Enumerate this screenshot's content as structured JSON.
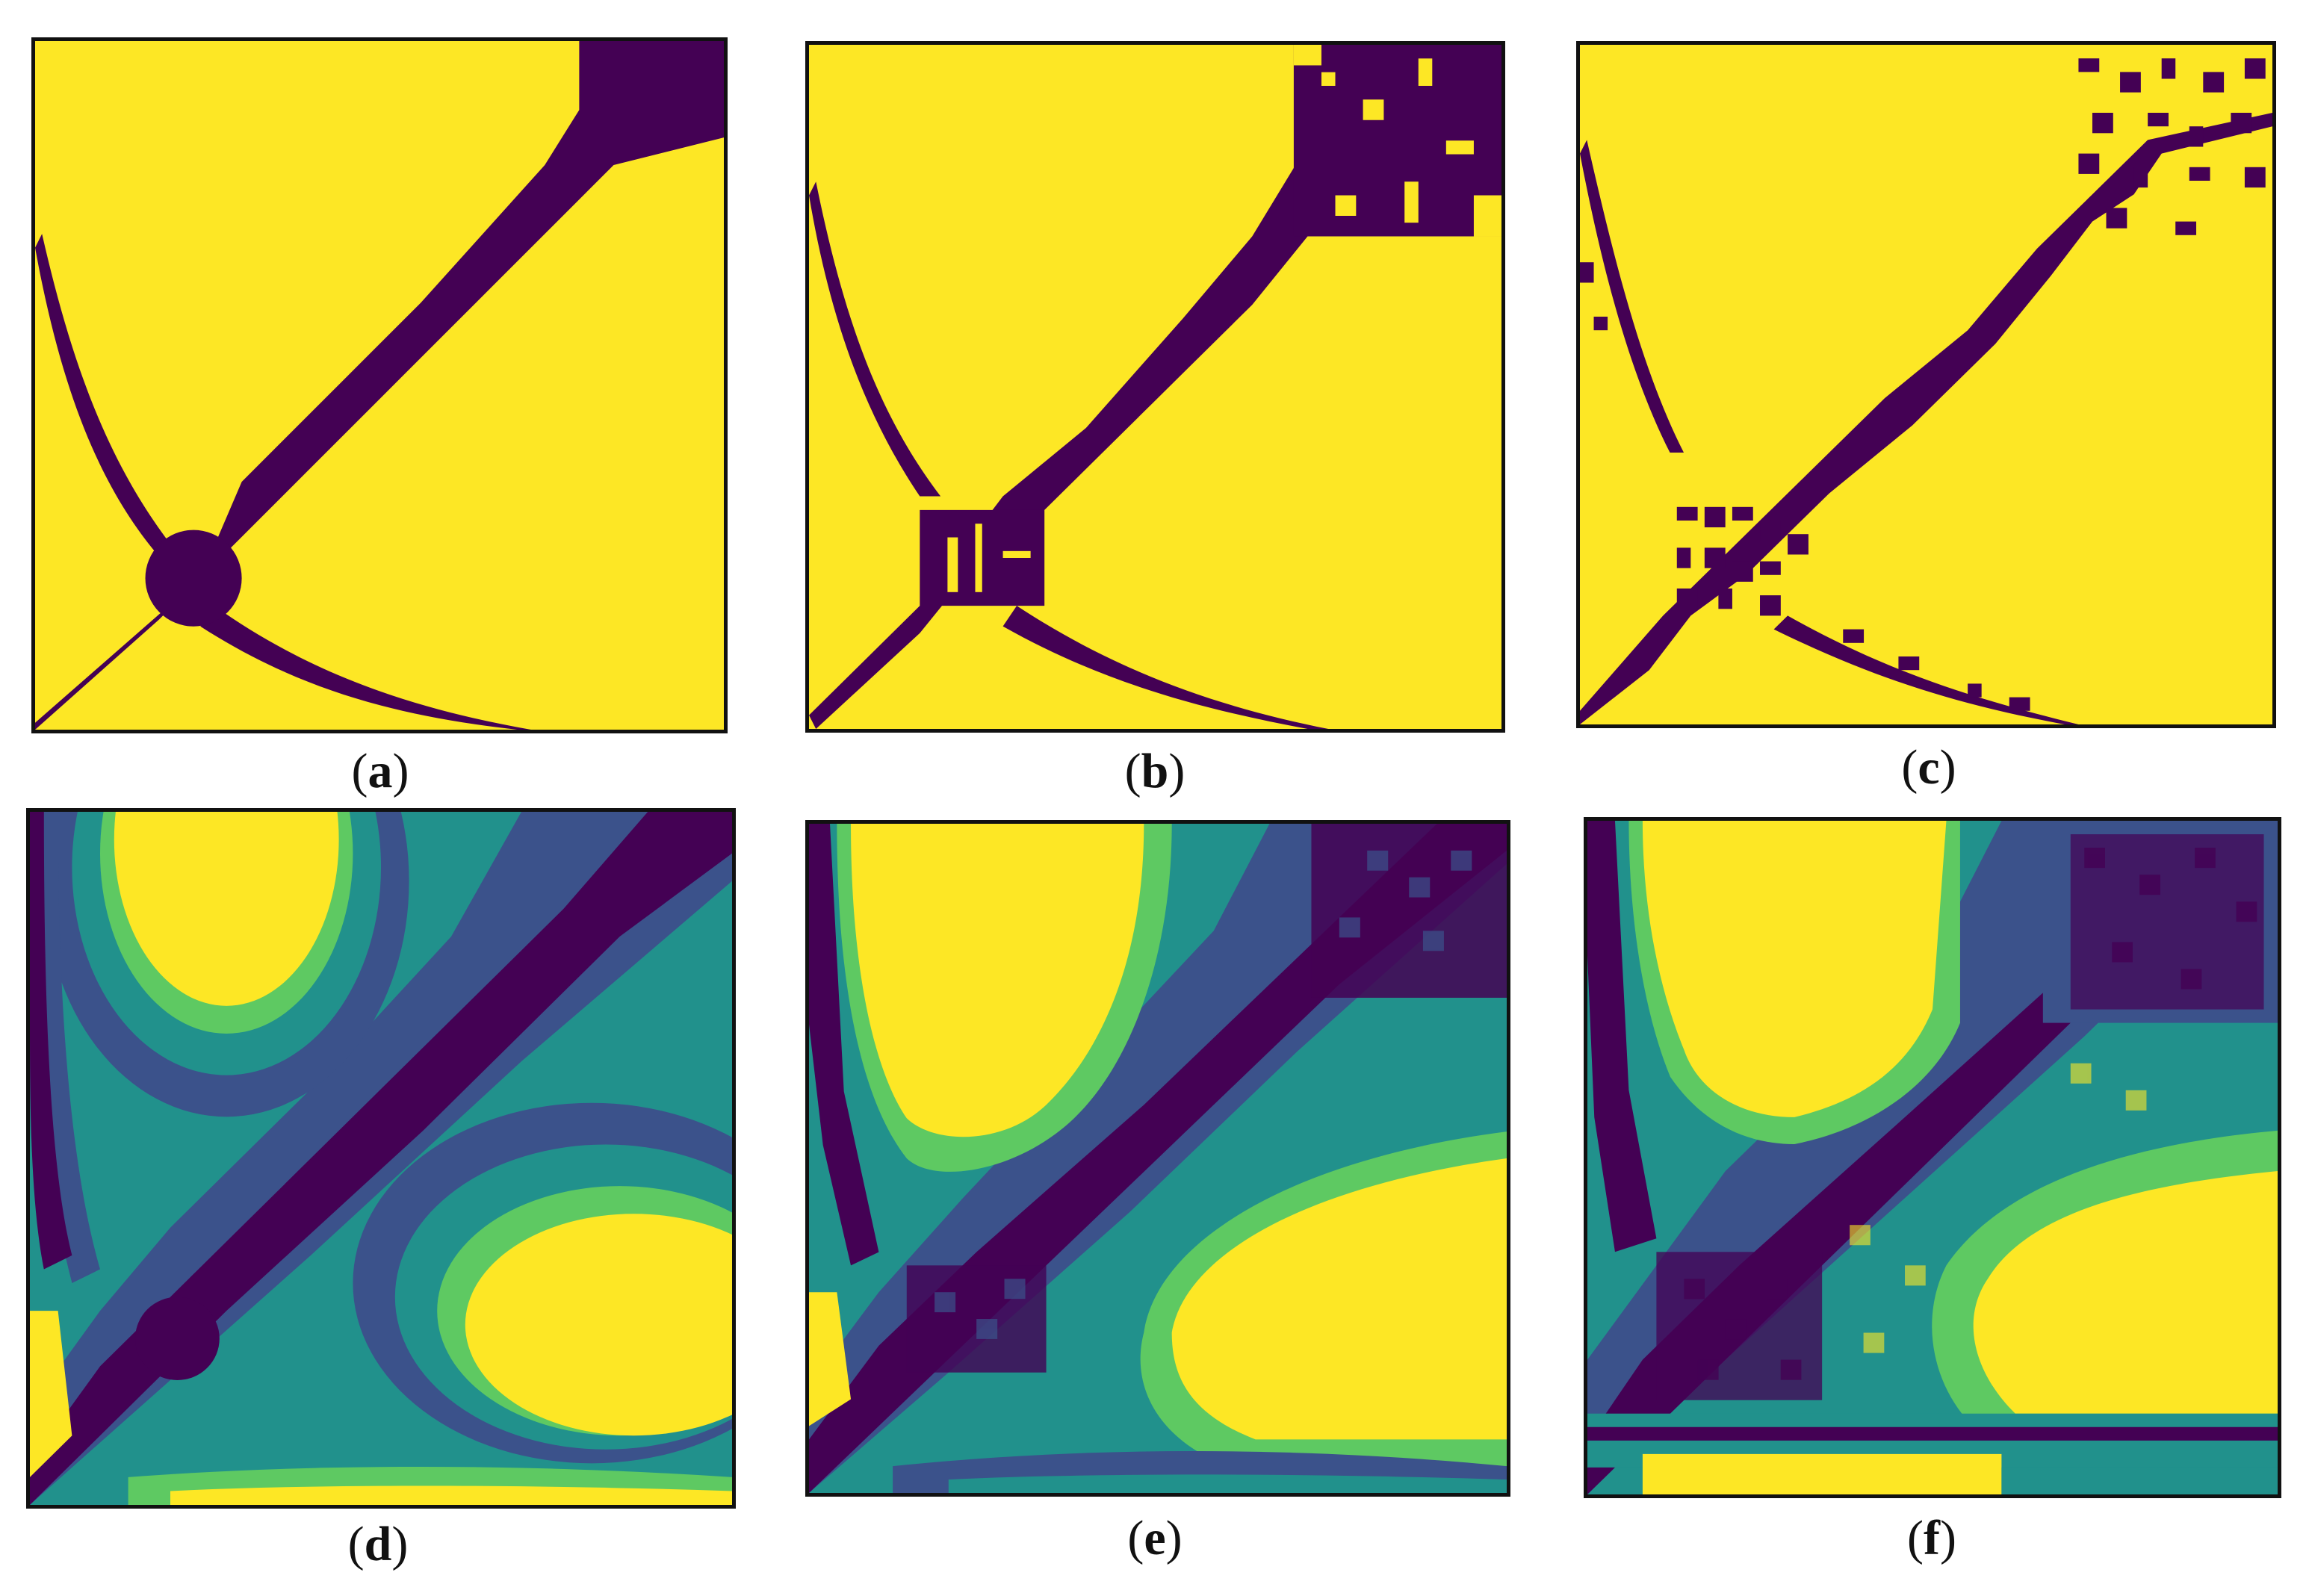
{
  "figure": {
    "colors": {
      "low": "#440154",
      "mid_dark": "#3b528b",
      "mid": "#21918c",
      "mid_light": "#5ec962",
      "high": "#fde725",
      "frame": "#111111"
    },
    "colormap": "viridis",
    "panels": [
      {
        "id": "a",
        "caption_open": "(",
        "caption_letter": "a",
        "caption_close": ")",
        "style": "binary",
        "texture": "smooth"
      },
      {
        "id": "b",
        "caption_open": "(",
        "caption_letter": "b",
        "caption_close": ")",
        "style": "binary",
        "texture": "blocky"
      },
      {
        "id": "c",
        "caption_open": "(",
        "caption_letter": "c",
        "caption_close": ")",
        "style": "binary",
        "texture": "sparse"
      },
      {
        "id": "d",
        "caption_open": "(",
        "caption_letter": "d",
        "caption_close": ")",
        "style": "continuous",
        "texture": "smooth"
      },
      {
        "id": "e",
        "caption_open": "(",
        "caption_letter": "e",
        "caption_close": ")",
        "style": "continuous",
        "texture": "blocky"
      },
      {
        "id": "f",
        "caption_open": "(",
        "caption_letter": "f",
        "caption_close": ")",
        "style": "continuous",
        "texture": "sparse"
      }
    ]
  }
}
